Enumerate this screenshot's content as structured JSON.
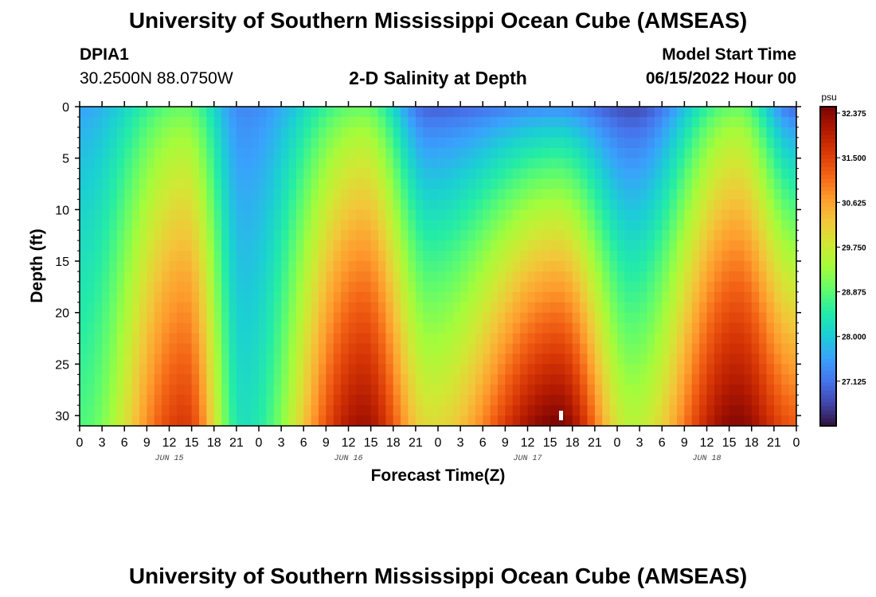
{
  "header": {
    "title": "University of Southern Mississippi Ocean Cube (AMSEAS)",
    "station_id": "DPIA1",
    "location": "30.2500N  88.0750W",
    "model_start_label": "Model Start Time",
    "model_start_value": "06/15/2022 Hour 00"
  },
  "footer": {
    "title": "University of Southern Mississippi Ocean Cube (AMSEAS)"
  },
  "chart_data": {
    "type": "heatmap",
    "title": "2-D Salinity at Depth",
    "xlabel": "Forecast Time(Z)",
    "ylabel": "Depth (ft)",
    "x_range_hours": [
      0,
      96
    ],
    "y_range_ft": [
      0,
      31
    ],
    "y_ticks": [
      0,
      5,
      10,
      15,
      20,
      25,
      30
    ],
    "x_tick_labels": [
      "0",
      "3",
      "6",
      "9",
      "12",
      "15",
      "18",
      "21",
      "0",
      "3",
      "6",
      "9",
      "12",
      "15",
      "18",
      "21",
      "0",
      "3",
      "6",
      "9",
      "12",
      "15",
      "18",
      "21",
      "0",
      "3",
      "6",
      "9",
      "12",
      "15",
      "18",
      "21",
      "0"
    ],
    "day_labels": [
      "JUN 15",
      "JUN 16",
      "JUN 17",
      "JUN 18"
    ],
    "colorbar": {
      "unit": "psu",
      "min": 26.25,
      "max": 32.5,
      "tick_values": [
        32.375,
        31.5,
        30.625,
        29.75,
        28.875,
        28.0,
        27.125
      ],
      "tick_labels": [
        "32.375",
        "31.500",
        "30.625",
        "29.750",
        "28.875",
        "28.000",
        "27.125"
      ]
    },
    "peak_profiles_psu": [
      {
        "hour": 0,
        "surface": 27.6,
        "bottom": 28.8
      },
      {
        "hour": 14,
        "surface": 28.9,
        "bottom": 31.6
      },
      {
        "hour": 22,
        "surface": 27.3,
        "bottom": 28.3
      },
      {
        "hour": 38,
        "surface": 28.9,
        "bottom": 32.2
      },
      {
        "hour": 47,
        "surface": 26.9,
        "bottom": 30.0
      },
      {
        "hour": 64,
        "surface": 27.3,
        "bottom": 32.5
      },
      {
        "hour": 74,
        "surface": 26.7,
        "bottom": 29.6
      },
      {
        "hour": 88,
        "surface": 28.9,
        "bottom": 32.4
      },
      {
        "hour": 96,
        "surface": 27.0,
        "bottom": 31.3
      }
    ]
  }
}
